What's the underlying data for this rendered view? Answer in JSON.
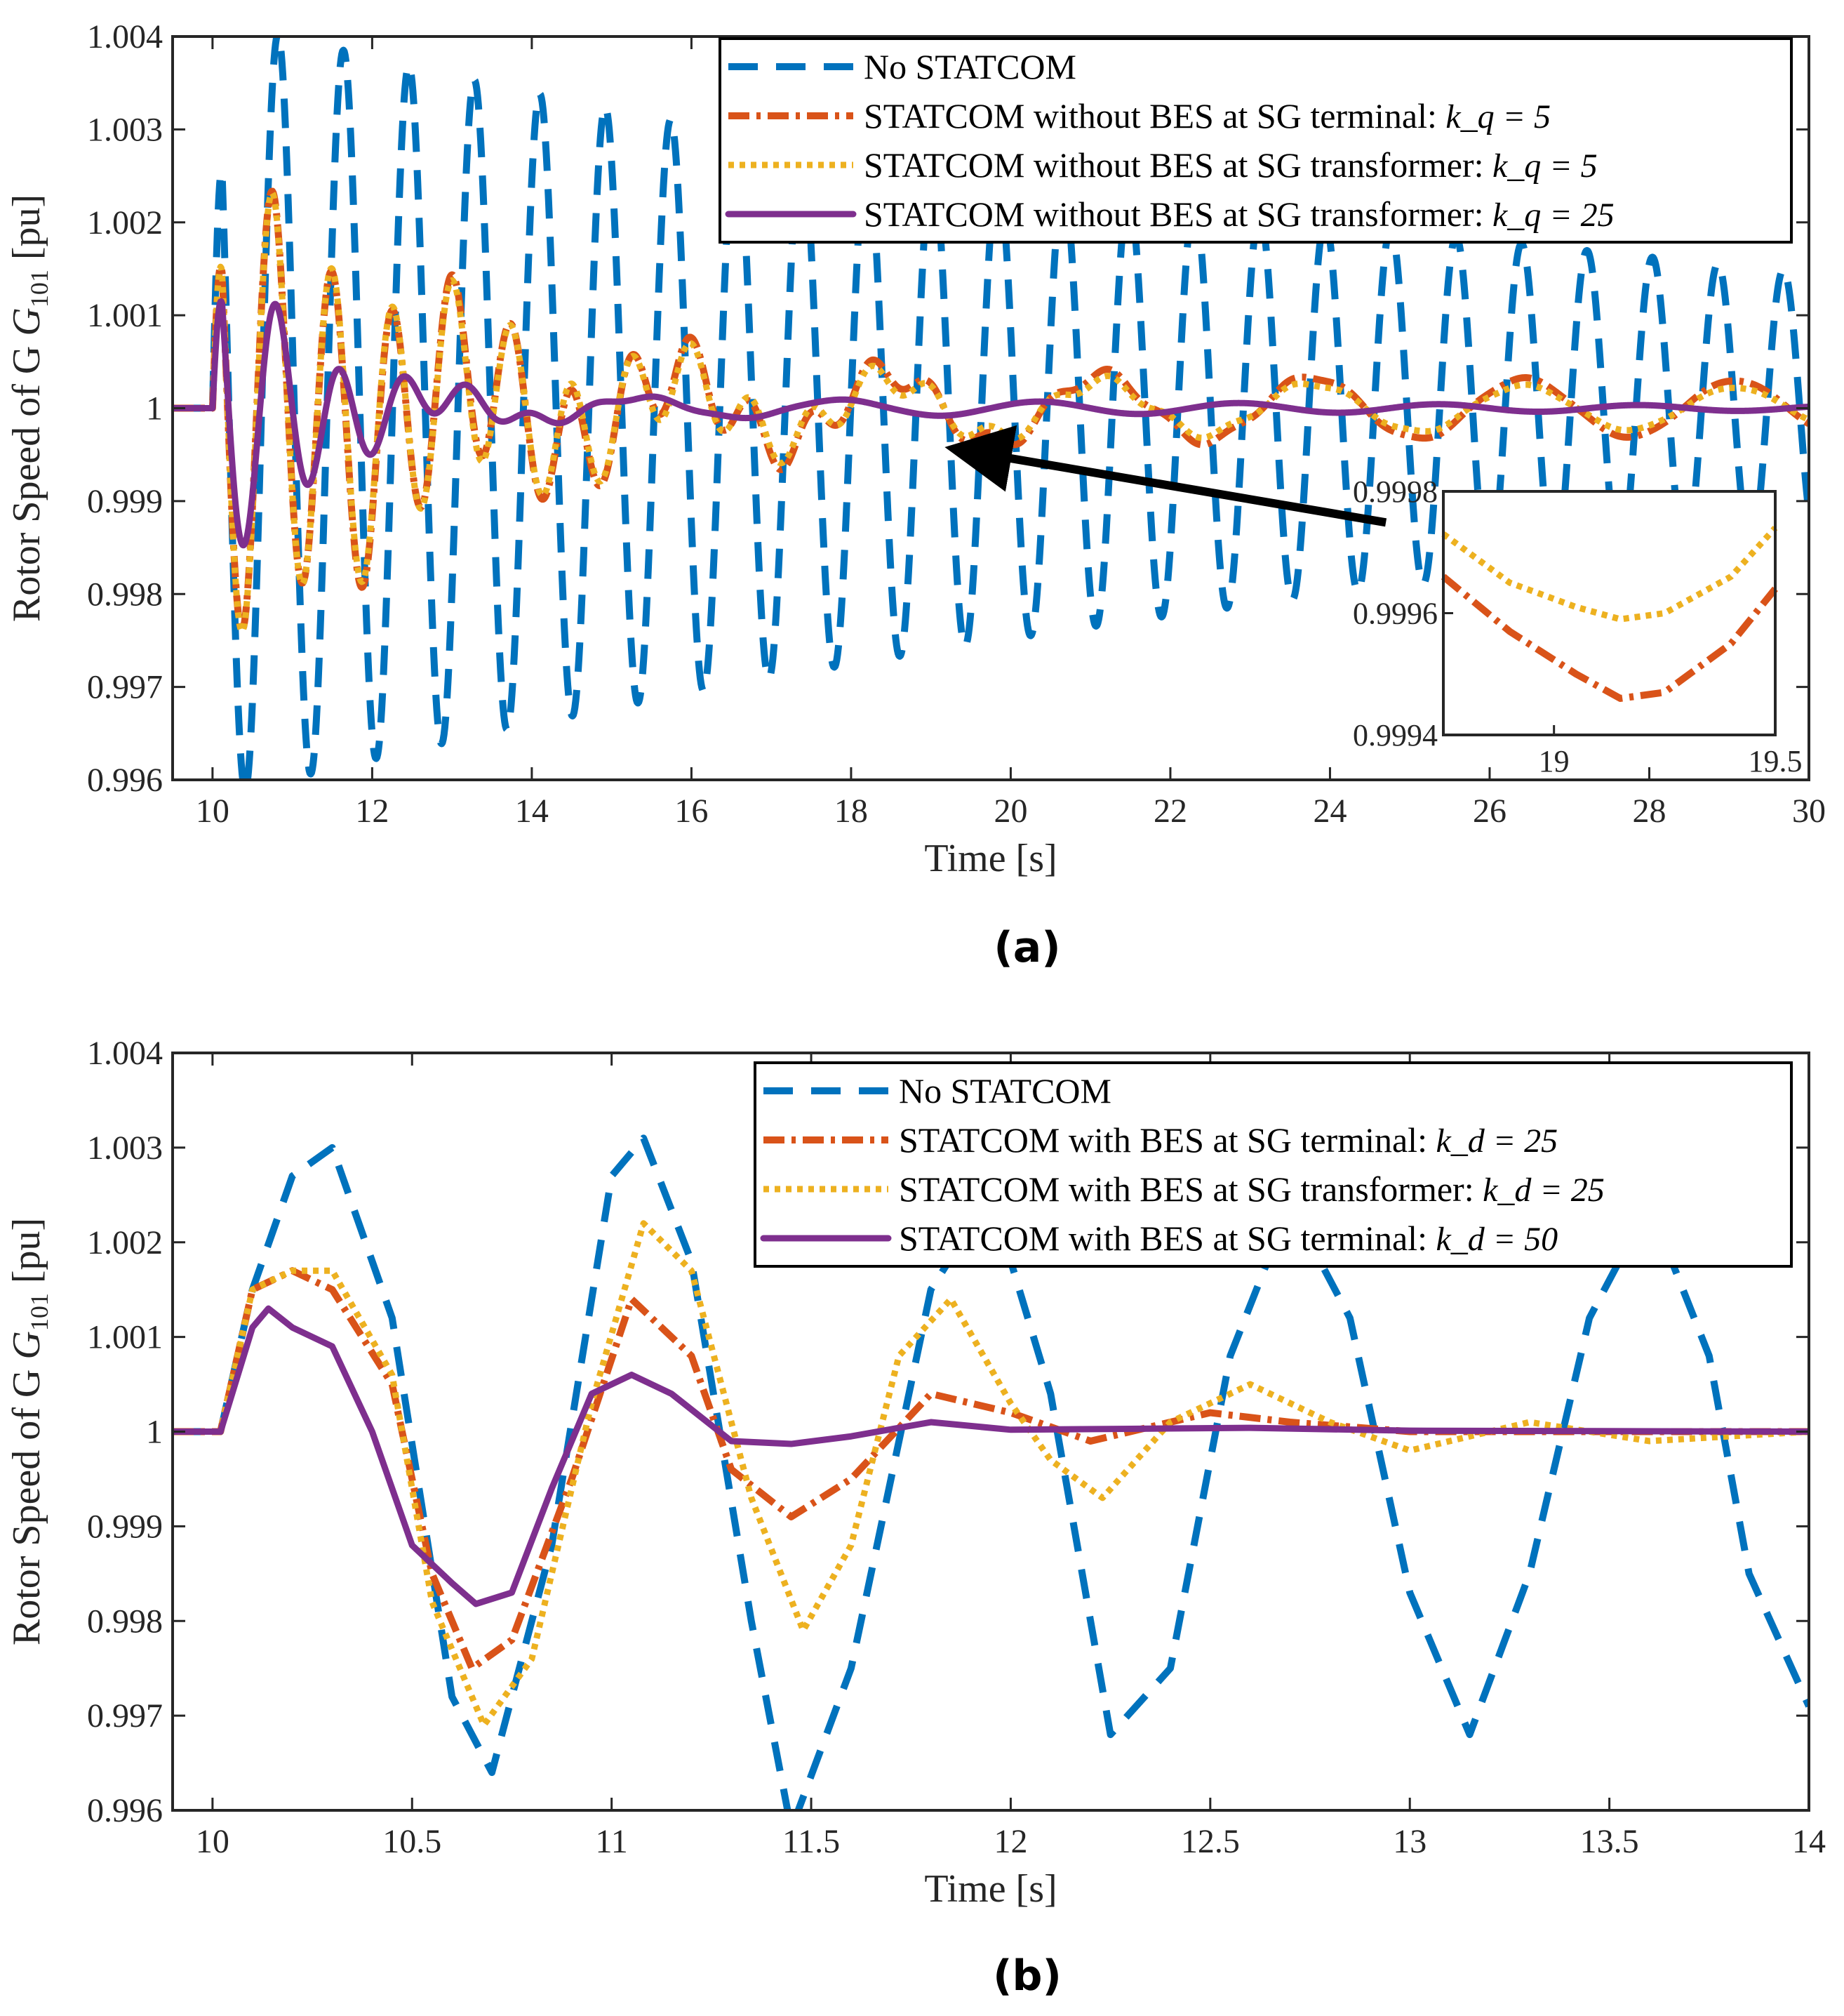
{
  "colors": {
    "blue": "#0072BD",
    "orange": "#D95319",
    "yellow": "#EDB120",
    "purple": "#7E2F8E",
    "axis": "#262626"
  },
  "chart_data": [
    {
      "type": "line",
      "panel_label": "(a)",
      "xlabel": "Time [s]",
      "ylabel": "Rotor Speed of G",
      "ylabel_subscript": "101",
      "ylabel_unit": "[pu]",
      "xlim": [
        9.5,
        30
      ],
      "ylim": [
        0.996,
        1.004
      ],
      "xticks": [
        10,
        12,
        14,
        16,
        18,
        20,
        22,
        24,
        26,
        28,
        30
      ],
      "xtick_labels": [
        "10",
        "12",
        "14",
        "16",
        "18",
        "20",
        "22",
        "24",
        "26",
        "28",
        "30"
      ],
      "yticks": [
        0.996,
        0.997,
        0.998,
        0.999,
        1,
        1.001,
        1.002,
        1.003,
        1.004
      ],
      "ytick_labels": [
        "0.996",
        "0.997",
        "0.998",
        "0.999",
        "1",
        "1.001",
        "1.002",
        "1.003",
        "1.004"
      ],
      "legend_position": "top-right",
      "series": [
        {
          "name": "No STATCOM",
          "style": "dashed",
          "color": "blue",
          "params": {
            "t0": 10.0,
            "a0": 0.0042,
            "tau": 19,
            "period": 0.82,
            "phase": 0.25,
            "sign": 1
          }
        },
        {
          "name": "STATCOM without BES at SG terminal: ",
          "math": "k_q = 5",
          "style": "dashdot",
          "color": "orange",
          "params": {
            "t0": 10.0,
            "a0": 0.0028,
            "tau": 3.0,
            "period": 0.75,
            "phase": 0.25,
            "sign": 1,
            "a1": 0.00048,
            "tau1": 40,
            "period1": 2.65,
            "phase1": 0.05
          }
        },
        {
          "name": "STATCOM without BES at SG transformer: ",
          "math": "k_q = 5",
          "style": "dotted",
          "color": "yellow",
          "params": {
            "t0": 10.0,
            "a0": 0.0028,
            "tau": 3.0,
            "period": 0.75,
            "phase": 0.25,
            "sign": 1,
            "a1": 0.00042,
            "tau1": 30,
            "period1": 2.65,
            "phase1": 0.05
          }
        },
        {
          "name": "STATCOM without BES at SG transformer: ",
          "math": "k_q = 25",
          "style": "solid",
          "color": "purple",
          "params": {
            "t0": 10.0,
            "a0": 0.0021,
            "tau": 1.2,
            "period": 0.8,
            "phase": 0.25,
            "sign": 1,
            "a1": 0.0002,
            "tau1": 10,
            "period1": 2.5,
            "phase1": 0.1
          }
        }
      ],
      "inset": {
        "xlim": [
          18.75,
          19.5
        ],
        "ylim": [
          0.9994,
          0.9998
        ],
        "xticks": [
          19,
          19.5
        ],
        "xtick_labels": [
          "19",
          "19.5"
        ],
        "yticks": [
          0.9994,
          0.9996,
          0.9998
        ],
        "ytick_labels": [
          "0.9994",
          "0.9996",
          "0.9998"
        ],
        "series": [
          {
            "color": "orange",
            "style": "dashdot",
            "x": [
              18.75,
              18.9,
              19.05,
              19.15,
              19.25,
              19.4,
              19.5
            ],
            "y": [
              0.99966,
              0.99957,
              0.9995,
              0.99946,
              0.99947,
              0.99955,
              0.99964
            ]
          },
          {
            "color": "yellow",
            "style": "dotted",
            "x": [
              18.75,
              18.9,
              19.05,
              19.15,
              19.25,
              19.4,
              19.5
            ],
            "y": [
              0.99973,
              0.99965,
              0.99961,
              0.99959,
              0.9996,
              0.99966,
              0.99974
            ]
          }
        ]
      },
      "annotation": {
        "type": "arrow",
        "from": [
          24.7,
          0.99877
        ],
        "to": [
          19.5,
          0.99955
        ]
      }
    },
    {
      "type": "line",
      "panel_label": "(b)",
      "xlabel": "Time [s]",
      "ylabel": "Rotor Speed of G",
      "ylabel_subscript": "101",
      "ylabel_unit": "[pu]",
      "xlim": [
        9.9,
        14
      ],
      "ylim": [
        0.996,
        1.004
      ],
      "xticks": [
        10,
        10.5,
        11,
        11.5,
        12,
        12.5,
        13,
        13.5,
        14
      ],
      "xtick_labels": [
        "10",
        "10.5",
        "11",
        "11.5",
        "12",
        "12.5",
        "13",
        "13.5",
        "14"
      ],
      "yticks": [
        0.996,
        0.997,
        0.998,
        0.999,
        1,
        1.001,
        1.002,
        1.003,
        1.004
      ],
      "ytick_labels": [
        "0.996",
        "0.997",
        "0.998",
        "0.999",
        "1",
        "1.001",
        "1.002",
        "1.003",
        "1.004"
      ],
      "legend_position": "top-right",
      "series": [
        {
          "name": "No STATCOM",
          "style": "dashed",
          "color": "blue",
          "x": [
            9.9,
            10.02,
            10.1,
            10.2,
            10.3,
            10.45,
            10.6,
            10.7,
            10.85,
            11.0,
            11.08,
            11.2,
            11.35,
            11.45,
            11.6,
            11.8,
            11.95,
            12.1,
            12.25,
            12.4,
            12.55,
            12.7,
            12.85,
            13.0,
            13.15,
            13.3,
            13.45,
            13.6,
            13.75,
            13.85,
            14.0
          ],
          "y": [
            1.0,
            1.0,
            1.0015,
            1.0027,
            1.003,
            1.0012,
            0.9972,
            0.9964,
            0.9988,
            1.0027,
            1.0031,
            1.0018,
            0.998,
            0.9958,
            0.9975,
            1.0015,
            1.0025,
            1.0004,
            0.9968,
            0.9975,
            1.0008,
            1.0024,
            1.0012,
            0.9983,
            0.9968,
            0.9985,
            1.0012,
            1.0024,
            1.0008,
            0.9985,
            0.9971
          ]
        },
        {
          "name": "STATCOM with BES at SG terminal: ",
          "math": "k_d = 25",
          "style": "dashdot",
          "color": "orange",
          "x": [
            9.9,
            10.02,
            10.1,
            10.2,
            10.3,
            10.45,
            10.55,
            10.65,
            10.75,
            10.9,
            11.05,
            11.2,
            11.3,
            11.45,
            11.6,
            11.8,
            12.0,
            12.2,
            12.5,
            12.7,
            13.0,
            13.5,
            14.0
          ],
          "y": [
            1.0,
            1.0,
            1.0015,
            1.0017,
            1.0015,
            1.0005,
            0.9985,
            0.9975,
            0.9978,
            0.9995,
            1.0014,
            1.0008,
            0.9996,
            0.9991,
            0.9995,
            1.0004,
            1.0002,
            0.9999,
            1.0002,
            1.0001,
            1.0,
            1.0,
            1.0
          ]
        },
        {
          "name": "STATCOM with BES at SG transformer: ",
          "math": "k_d = 25",
          "style": "dotted",
          "color": "yellow",
          "x": [
            9.9,
            10.02,
            10.1,
            10.2,
            10.3,
            10.45,
            10.55,
            10.68,
            10.8,
            10.95,
            11.08,
            11.2,
            11.35,
            11.48,
            11.6,
            11.72,
            11.85,
            12.0,
            12.1,
            12.23,
            12.4,
            12.6,
            12.8,
            13.0,
            13.3,
            13.6,
            14.0
          ],
          "y": [
            1.0,
            1.0,
            1.0015,
            1.0017,
            1.0017,
            1.0006,
            0.9982,
            0.9969,
            0.9976,
            1.0003,
            1.0022,
            1.0017,
            0.9993,
            0.9979,
            0.9988,
            1.0008,
            1.0014,
            1.0003,
            0.9997,
            0.9993,
            1.0001,
            1.0005,
            1.0001,
            0.9998,
            1.0001,
            0.9999,
            1.0
          ]
        },
        {
          "name": "STATCOM with BES at SG terminal: ",
          "math": "k_d = 50",
          "style": "solid",
          "color": "purple",
          "x": [
            9.9,
            10.02,
            10.1,
            10.14,
            10.2,
            10.3,
            10.4,
            10.5,
            10.6,
            10.66,
            10.75,
            10.85,
            10.95,
            11.05,
            11.15,
            11.3,
            11.45,
            11.6,
            11.8,
            12.0,
            12.3,
            12.6,
            13.0,
            14.0
          ],
          "y": [
            1.0,
            1.0,
            1.0011,
            1.0013,
            1.0011,
            1.0009,
            1.0,
            0.9988,
            0.9984,
            0.99818,
            0.9983,
            0.9994,
            1.0004,
            1.0006,
            1.0004,
            0.9999,
            0.99987,
            0.99995,
            1.0001,
            1.00002,
            1.00003,
            1.00004,
            1.00001,
            1.0
          ]
        }
      ]
    }
  ]
}
